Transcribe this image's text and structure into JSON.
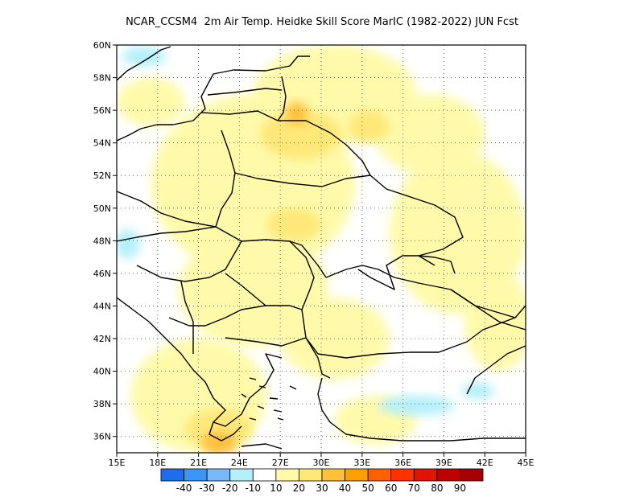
{
  "title": "NCAR_CCSM4  2m Air Temp. Heidke Skill Score MarIC (1982-2022) JUN Fcst",
  "map": {
    "lon_range": [
      15,
      45
    ],
    "lat_range": [
      35,
      60
    ],
    "lon_ticks": [
      {
        "value": 15,
        "label": "15E"
      },
      {
        "value": 18,
        "label": "18E"
      },
      {
        "value": 21,
        "label": "21E"
      },
      {
        "value": 24,
        "label": "24E"
      },
      {
        "value": 27,
        "label": "27E"
      },
      {
        "value": 30,
        "label": "30E"
      },
      {
        "value": 33,
        "label": "33E"
      },
      {
        "value": 36,
        "label": "36E"
      },
      {
        "value": 39,
        "label": "39E"
      },
      {
        "value": 42,
        "label": "42E"
      },
      {
        "value": 45,
        "label": "45E"
      }
    ],
    "lat_ticks": [
      {
        "value": 60,
        "label": "60N"
      },
      {
        "value": 58,
        "label": "58N"
      },
      {
        "value": 56,
        "label": "56N"
      },
      {
        "value": 54,
        "label": "54N"
      },
      {
        "value": 52,
        "label": "52N"
      },
      {
        "value": 50,
        "label": "50N"
      },
      {
        "value": 48,
        "label": "48N"
      },
      {
        "value": 46,
        "label": "46N"
      },
      {
        "value": 44,
        "label": "44N"
      },
      {
        "value": 42,
        "label": "42N"
      },
      {
        "value": 40,
        "label": "40N"
      },
      {
        "value": 38,
        "label": "38N"
      },
      {
        "value": 36,
        "label": "36N"
      }
    ],
    "grid": "dotted"
  },
  "colorbar": {
    "colors": [
      "#1e6eeb",
      "#3c96f5",
      "#78b9fa",
      "#b4f0fa",
      "#ffffff",
      "#fffaaa",
      "#ffe878",
      "#ffc03c",
      "#ffa000",
      "#ff6000",
      "#ff3200",
      "#e11400",
      "#c00000",
      "#a50000"
    ],
    "labels": [
      "-40",
      "-30",
      "-20",
      "-10",
      "10",
      "20",
      "30",
      "40",
      "50",
      "60",
      "70",
      "80",
      "90"
    ]
  },
  "fields": [
    {
      "level": "10",
      "color": "#fffaaa",
      "lon": 25.0,
      "lat": 51.5,
      "rlon": 7.5,
      "rlat": 5.5
    },
    {
      "level": "10",
      "color": "#fffaaa",
      "lon": 31.0,
      "lat": 57.0,
      "rlon": 6.0,
      "rlat": 3.0
    },
    {
      "level": "10",
      "color": "#fffaaa",
      "lon": 40.0,
      "lat": 48.5,
      "rlon": 5.0,
      "rlat": 5.0
    },
    {
      "level": "10",
      "color": "#fffaaa",
      "lon": 38.0,
      "lat": 54.5,
      "rlon": 4.0,
      "rlat": 2.5
    },
    {
      "level": "10",
      "color": "#fffaaa",
      "lon": 25.0,
      "lat": 45.0,
      "rlon": 5.5,
      "rlat": 3.5
    },
    {
      "level": "10",
      "color": "#fffaaa",
      "lon": 21.0,
      "lat": 38.5,
      "rlon": 5.0,
      "rlat": 3.5
    },
    {
      "level": "10",
      "color": "#fffaaa",
      "lon": 31.0,
      "lat": 42.0,
      "rlon": 4.0,
      "rlat": 2.5
    },
    {
      "level": "10",
      "color": "#fffaaa",
      "lon": 43.0,
      "lat": 43.0,
      "rlon": 2.5,
      "rlat": 3.0
    },
    {
      "level": "10",
      "color": "#fffaaa",
      "lon": 17.5,
      "lat": 56.5,
      "rlon": 2.5,
      "rlat": 1.5
    },
    {
      "level": "10",
      "color": "#fffaaa",
      "lon": 34.0,
      "lat": 37.0,
      "rlon": 3.0,
      "rlat": 1.5
    },
    {
      "level": "20",
      "color": "#ffe878",
      "lon": 28.5,
      "lat": 54.5,
      "rlon": 3.0,
      "rlat": 1.5
    },
    {
      "level": "20",
      "color": "#ffe878",
      "lon": 33.5,
      "lat": 55.0,
      "rlon": 1.5,
      "rlat": 1.0
    },
    {
      "level": "20",
      "color": "#ffe878",
      "lon": 22.5,
      "lat": 36.5,
      "rlon": 2.5,
      "rlat": 1.2
    },
    {
      "level": "20",
      "color": "#ffe878",
      "lon": 28.0,
      "lat": 49.0,
      "rlon": 2.0,
      "rlat": 1.0
    },
    {
      "level": "30",
      "color": "#ffc03c",
      "lon": 28.2,
      "lat": 55.8,
      "rlon": 0.8,
      "rlat": 0.7
    },
    {
      "level": "30",
      "color": "#ffc03c",
      "lon": 22.5,
      "lat": 35.6,
      "rlon": 1.3,
      "rlat": 0.7
    },
    {
      "level": "-10",
      "color": "#b4f0fa",
      "lon": 15.8,
      "lat": 47.8,
      "rlon": 0.9,
      "rlat": 0.9
    },
    {
      "level": "-10",
      "color": "#b4f0fa",
      "lon": 37.0,
      "lat": 37.9,
      "rlon": 2.8,
      "rlat": 0.6
    },
    {
      "level": "-10",
      "color": "#b4f0fa",
      "lon": 41.5,
      "lat": 38.8,
      "rlon": 1.2,
      "rlat": 0.5
    },
    {
      "level": "-10",
      "color": "#b4f0fa",
      "lon": 17.0,
      "lat": 59.3,
      "rlon": 1.6,
      "rlat": 0.6
    }
  ]
}
